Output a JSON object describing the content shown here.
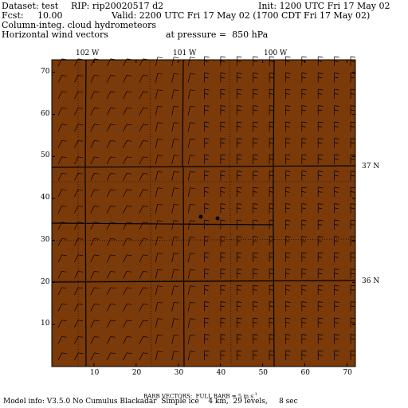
{
  "header": {
    "dataset": "Dataset: test",
    "rip": "RIP: rip20020517 d2",
    "init": "Init: 1200 UTC Fri 17 May 02",
    "fcst_label": "Fcst:",
    "fcst_value": "10.00",
    "valid": "Valid: 2200 UTC Fri 17 May 02 (1700 CDT Fri 17 May 02)",
    "field1": "Column-integ. cloud hydrometeors",
    "field2": "Horizontal wind vectors",
    "pressure": "at pressure =  850 hPa"
  },
  "map": {
    "background_color": "#7b3a0a",
    "grid_x_range": [
      0,
      72
    ],
    "grid_y_range": [
      0,
      73
    ],
    "x_ticks": [
      "10",
      "20",
      "30",
      "40",
      "50",
      "60",
      "70"
    ],
    "y_ticks": [
      "10",
      "20",
      "30",
      "40",
      "50",
      "60",
      "70"
    ],
    "longitude_labels": [
      "102 W",
      "101 W",
      "100 W"
    ],
    "latitude_labels": [
      "37 N",
      "36 N"
    ],
    "features": [
      "state-boundaries",
      "county-lines",
      "wind-barbs",
      "cloud-hydrometeor-dots"
    ]
  },
  "footer": {
    "barb_vectors": "BARB VECTORS:  FULL BARB = 5 m s",
    "barb_exp": "-1",
    "model_info": "Model info: V3.5.0 No Cumulus Blackadar  Simple ice    4 km,  29 levels,     8 sec"
  }
}
